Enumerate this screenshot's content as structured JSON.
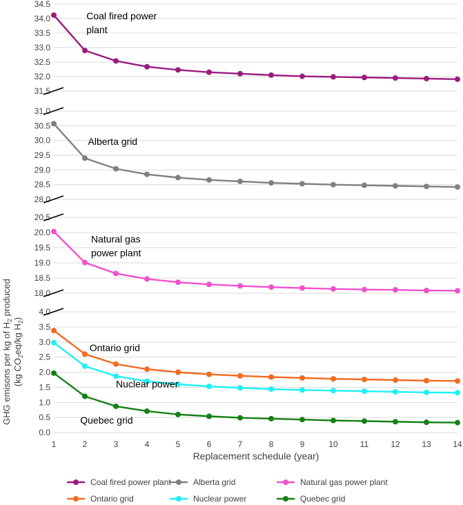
{
  "chart_data": {
    "type": "line",
    "xlabel": "Replacement schedule (year)",
    "ylabel": "GHG emisons per kg of H2 produced (kg CO2eq/kg H2)",
    "ylabel_parts": {
      "line1_a": "GHG emisons per kg of H",
      "line1_sub": "2",
      "line1_b": " produced",
      "line2_a": "(kg CO",
      "line2_sub1": "2",
      "line2_b": "eq/kg H",
      "line2_sub2": "2",
      "line2_c": ")"
    },
    "x": [
      1,
      2,
      3,
      4,
      5,
      6,
      7,
      8,
      9,
      10,
      11,
      12,
      13,
      14
    ],
    "panels": [
      {
        "id": "coal",
        "ylim": [
          31.5,
          34.5
        ],
        "ticks": [
          "31.5",
          "32.0",
          "32.5",
          "33.0",
          "33.5",
          "34.0",
          "34.5"
        ],
        "series": [
          {
            "name": "Coal fired power plant",
            "color": "#9b1b7f",
            "values": [
              34.12,
              32.9,
              32.54,
              32.34,
              32.23,
              32.15,
              32.1,
              32.05,
              32.01,
              31.99,
              31.97,
              31.95,
              31.93,
              31.91
            ]
          }
        ],
        "annotations": [
          {
            "lines": [
              "Coal fired power",
              "plant"
            ],
            "x": 2.05,
            "y": 33.98
          }
        ]
      },
      {
        "id": "alberta",
        "ylim": [
          28.0,
          31.0
        ],
        "ticks": [
          "28.0",
          "28.5",
          "29.0",
          "29.5",
          "30.0",
          "30.5",
          "31.0"
        ],
        "series": [
          {
            "name": "Alberta grid",
            "color": "#808080",
            "values": [
              30.57,
              29.4,
              29.04,
              28.85,
              28.74,
              28.66,
              28.61,
              28.56,
              28.53,
              28.5,
              28.48,
              28.46,
              28.44,
              28.42
            ]
          }
        ],
        "annotations": [
          {
            "lines": [
              "Alberta grid"
            ],
            "x": 2.1,
            "y": 29.85
          }
        ]
      },
      {
        "id": "natgas",
        "ylim": [
          18.0,
          20.5
        ],
        "ticks": [
          "18.0",
          "18.5",
          "19.0",
          "19.5",
          "20.0",
          "20.5"
        ],
        "series": [
          {
            "name": "Natural gas power plant",
            "color": "#f051cd",
            "values": [
              20.03,
              19.01,
              18.65,
              18.47,
              18.36,
              18.29,
              18.24,
              18.2,
              18.17,
              18.14,
              18.12,
              18.11,
              18.09,
              18.08
            ]
          }
        ],
        "annotations": [
          {
            "lines": [
              "Natural gas",
              "power plant"
            ],
            "x": 2.2,
            "y": 19.67
          }
        ]
      },
      {
        "id": "low",
        "ylim": [
          0.0,
          4.0
        ],
        "ticks": [
          "0.0",
          "0.5",
          "1.0",
          "1.5",
          "2.0",
          "2.5",
          "3.0",
          "3.5",
          "4.0"
        ],
        "series": [
          {
            "name": "Ontario grid",
            "color": "#f26b21",
            "values": [
              3.38,
              2.6,
              2.27,
              2.1,
              2.0,
              1.93,
              1.88,
              1.84,
              1.81,
              1.78,
              1.76,
              1.74,
              1.72,
              1.71
            ]
          },
          {
            "name": "Nuclear power",
            "color": "#1ef0f5",
            "values": [
              2.98,
              2.2,
              1.87,
              1.7,
              1.6,
              1.53,
              1.48,
              1.44,
              1.41,
              1.39,
              1.37,
              1.35,
              1.33,
              1.32
            ]
          },
          {
            "name": "Quebec grid",
            "color": "#158015",
            "values": [
              1.97,
              1.2,
              0.87,
              0.71,
              0.6,
              0.54,
              0.49,
              0.46,
              0.43,
              0.4,
              0.38,
              0.36,
              0.34,
              0.33
            ]
          }
        ],
        "annotations": [
          {
            "lines": [
              "Ontario grid"
            ],
            "x": 2.15,
            "y": 2.7
          },
          {
            "lines": [
              "Nuclear power"
            ],
            "x": 3.0,
            "y": 1.5
          },
          {
            "lines": [
              "Quebec grid"
            ],
            "x": 1.85,
            "y": 0.3
          }
        ]
      }
    ],
    "legend": [
      "Coal fired power plant",
      "Alberta grid",
      "Natural gas power plant",
      "Ontario grid",
      "Nuclear power",
      "Quebec grid"
    ],
    "legend_colors": [
      "#9b1b7f",
      "#808080",
      "#f051cd",
      "#f26b21",
      "#1ef0f5",
      "#158015"
    ]
  }
}
